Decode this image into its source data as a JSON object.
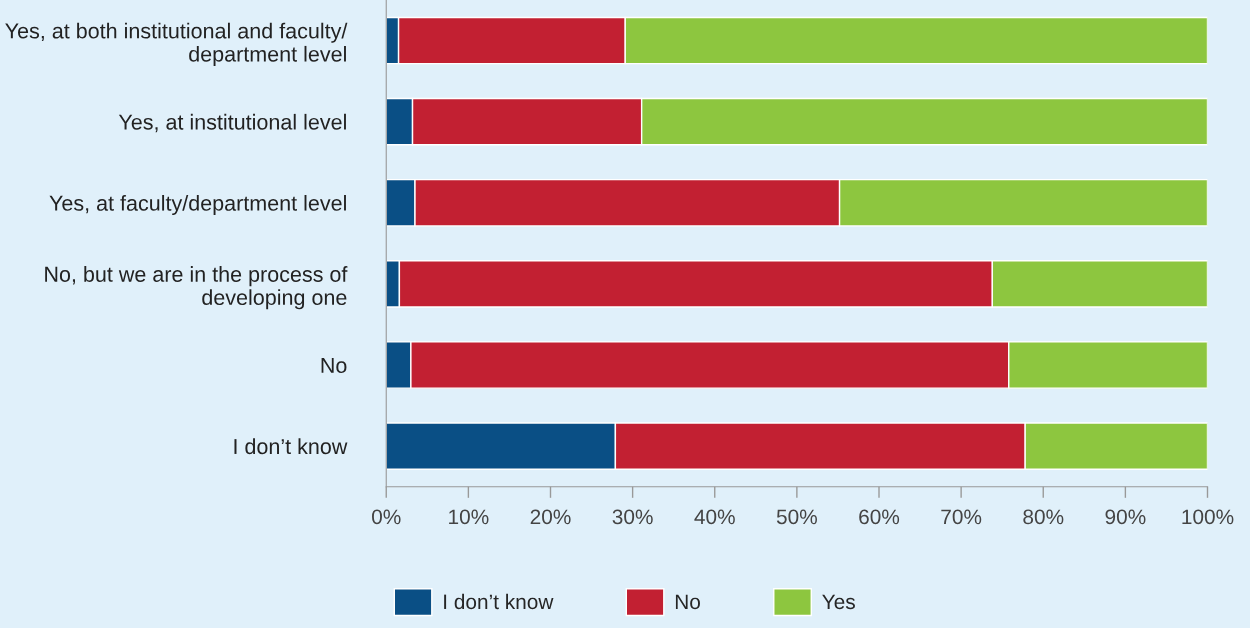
{
  "chart_data": {
    "type": "bar",
    "orientation": "horizontal",
    "stacked": true,
    "categories": [
      "Yes, at both institutional and faculty/\ndepartment level",
      "Yes, at institutional level",
      "Yes, at faculty/department level",
      "No, but we are in the process of\ndeveloping one",
      "No",
      "I don’t know"
    ],
    "series": [
      {
        "name": "I don’t know",
        "color": "#0a4f85",
        "values": [
          1.5,
          3.2,
          3.5,
          1.6,
          3.0,
          27.9
        ]
      },
      {
        "name": "No",
        "color": "#c22032",
        "values": [
          27.6,
          27.9,
          51.7,
          72.2,
          72.8,
          49.9
        ]
      },
      {
        "name": "Yes",
        "color": "#8dc63f",
        "values": [
          70.9,
          68.9,
          44.8,
          26.2,
          24.2,
          22.2
        ]
      }
    ],
    "xlim": [
      0,
      100
    ],
    "xticks": [
      {
        "value": 0,
        "label": "0%"
      },
      {
        "value": 10,
        "label": "10%"
      },
      {
        "value": 20,
        "label": "20%"
      },
      {
        "value": 30,
        "label": "30%"
      },
      {
        "value": 40,
        "label": "40%"
      },
      {
        "value": 50,
        "label": "50%"
      },
      {
        "value": 60,
        "label": "60%"
      },
      {
        "value": 70,
        "label": "70%"
      },
      {
        "value": 80,
        "label": "80%"
      },
      {
        "value": 90,
        "label": "90%"
      },
      {
        "value": 100,
        "label": "100%"
      }
    ],
    "grid": false,
    "legend": "bottom"
  }
}
